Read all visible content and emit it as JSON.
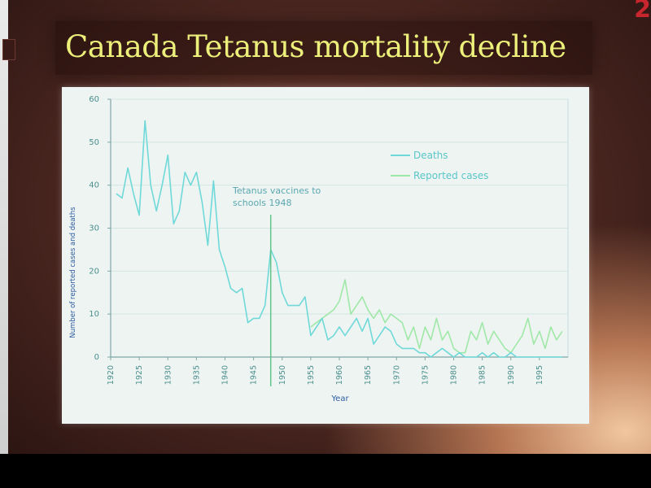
{
  "slide": {
    "title": "Canada Tetanus mortality decline",
    "number": "2"
  },
  "colors": {
    "title_text": "#ecef7a",
    "deaths_line": "#6fd9d9",
    "cases_line": "#9fe8a8",
    "axis": "#7fa6a6",
    "tick_label": "#4b8f8f",
    "axis_label": "#2c5ba0"
  },
  "chart_data": {
    "type": "line",
    "xlabel": "Year",
    "ylabel": "Number of reported cases and deaths",
    "xlim": [
      1920,
      2000
    ],
    "ylim": [
      0,
      60
    ],
    "x_ticks": [
      1920,
      1925,
      1930,
      1935,
      1940,
      1945,
      1950,
      1955,
      1960,
      1965,
      1970,
      1975,
      1980,
      1985,
      1990,
      1995
    ],
    "y_ticks": [
      0,
      10,
      20,
      30,
      40,
      50,
      60
    ],
    "grid": true,
    "legend_position": "top-right",
    "annotation": {
      "text_lines": [
        "Tetanus vaccines to",
        "schools 1948"
      ],
      "x": 1948
    },
    "series": [
      {
        "name": "Deaths",
        "color": "#6fd9d9",
        "x": [
          1921,
          1922,
          1923,
          1924,
          1925,
          1926,
          1927,
          1928,
          1929,
          1930,
          1931,
          1932,
          1933,
          1934,
          1935,
          1936,
          1937,
          1938,
          1939,
          1940,
          1941,
          1942,
          1943,
          1944,
          1945,
          1946,
          1947,
          1948,
          1949,
          1950,
          1951,
          1952,
          1953,
          1954,
          1955,
          1956,
          1957,
          1958,
          1959,
          1960,
          1961,
          1962,
          1963,
          1964,
          1965,
          1966,
          1967,
          1968,
          1969,
          1970,
          1971,
          1972,
          1973,
          1974,
          1975,
          1976,
          1977,
          1978,
          1979,
          1980,
          1981,
          1982,
          1983,
          1984,
          1985,
          1986,
          1987,
          1988,
          1989,
          1990,
          1991,
          1992,
          1993,
          1994,
          1995,
          1996,
          1997,
          1998,
          1999
        ],
        "values": [
          38,
          37,
          44,
          38,
          33,
          55,
          40,
          34,
          40,
          47,
          31,
          34,
          43,
          40,
          43,
          36,
          26,
          41,
          25,
          21,
          16,
          15,
          16,
          8,
          9,
          9,
          12,
          25,
          22,
          15,
          12,
          12,
          12,
          14,
          5,
          7,
          9,
          4,
          5,
          7,
          5,
          7,
          9,
          6,
          9,
          3,
          5,
          7,
          6,
          3,
          2,
          2,
          2,
          1,
          1,
          0,
          1,
          2,
          1,
          0,
          1,
          0,
          0,
          0,
          1,
          0,
          1,
          0,
          0,
          1,
          0,
          0,
          0,
          0,
          0,
          0,
          0,
          0,
          0
        ]
      },
      {
        "name": "Reported cases",
        "color": "#9fe8a8",
        "x": [
          1955,
          1956,
          1957,
          1958,
          1959,
          1960,
          1961,
          1962,
          1963,
          1964,
          1965,
          1966,
          1967,
          1968,
          1969,
          1970,
          1971,
          1972,
          1973,
          1974,
          1975,
          1976,
          1977,
          1978,
          1979,
          1980,
          1981,
          1982,
          1983,
          1984,
          1985,
          1986,
          1987,
          1988,
          1989,
          1990,
          1991,
          1992,
          1993,
          1994,
          1995,
          1996,
          1997,
          1998,
          1999
        ],
        "values": [
          7,
          8,
          9,
          10,
          11,
          13,
          18,
          10,
          12,
          14,
          11,
          9,
          11,
          8,
          10,
          9,
          8,
          4,
          7,
          2,
          7,
          4,
          9,
          4,
          6,
          2,
          1,
          1,
          6,
          4,
          8,
          3,
          6,
          4,
          2,
          1,
          3,
          5,
          9,
          3,
          6,
          2,
          7,
          4,
          6
        ]
      }
    ]
  }
}
